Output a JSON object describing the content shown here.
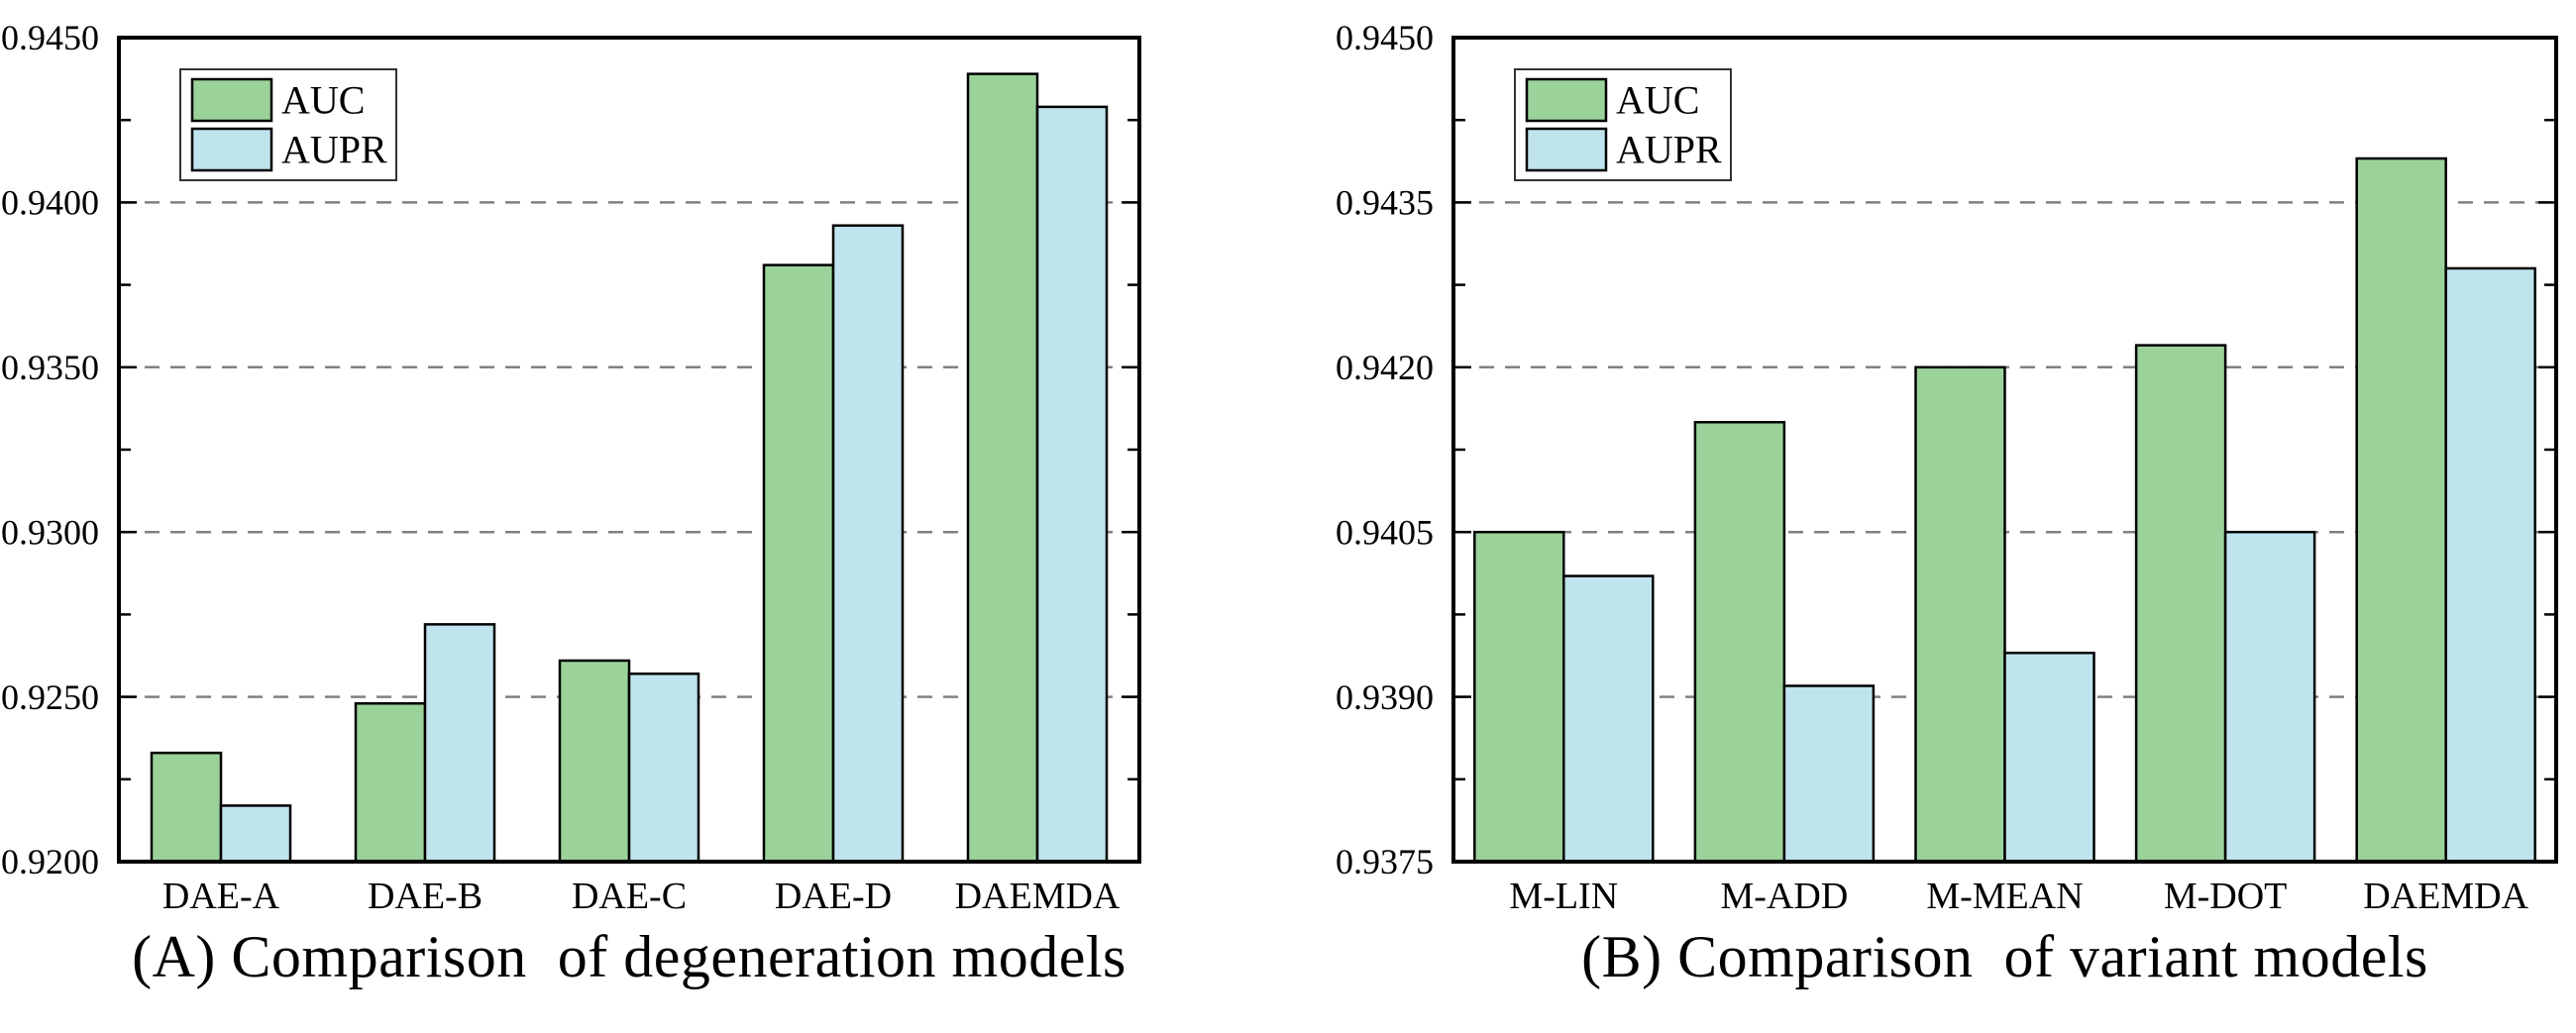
{
  "figure": {
    "background": "#ffffff"
  },
  "colors": {
    "auc": "#9bd29a",
    "aupr": "#c0e4ee",
    "bar_edge": "#000000",
    "axis": "#000000",
    "grid": "#808080",
    "text": "#000000"
  },
  "legend": {
    "position": "upper-left",
    "items": [
      {
        "label": "AUC",
        "color_key": "auc"
      },
      {
        "label": "AUPR",
        "color_key": "aupr"
      }
    ]
  },
  "chart_data": [
    {
      "id": "A",
      "type": "bar",
      "caption": "(A) Comparison  of degeneration models",
      "categories": [
        "DAE-A",
        "DAE-B",
        "DAE-C",
        "DAE-D",
        "DAEMDA"
      ],
      "series": [
        {
          "name": "AUC",
          "values": [
            0.9233,
            0.9248,
            0.9261,
            0.9381,
            0.9439
          ]
        },
        {
          "name": "AUPR",
          "values": [
            0.9217,
            0.9272,
            0.9257,
            0.9393,
            0.9429
          ]
        }
      ],
      "ylim": [
        0.92,
        0.945
      ],
      "ytick_step": 0.005,
      "yticks": [
        0.92,
        0.925,
        0.93,
        0.935,
        0.94,
        0.945
      ],
      "ytick_labels": [
        "0.9200",
        "0.9250",
        "0.9300",
        "0.9350",
        "0.9400",
        "0.9450"
      ],
      "xlabel": "",
      "ylabel": "",
      "grid": "horizontal-dashed",
      "legend_position": "upper-left"
    },
    {
      "id": "B",
      "type": "bar",
      "caption": "(B) Comparison  of variant models",
      "categories": [
        "M-LIN",
        "M-ADD",
        "M-MEAN",
        "M-DOT",
        "DAEMDA"
      ],
      "series": [
        {
          "name": "AUC",
          "values": [
            0.9405,
            0.9415,
            0.942,
            0.9422,
            0.9439
          ]
        },
        {
          "name": "AUPR",
          "values": [
            0.9401,
            0.9391,
            0.9394,
            0.9405,
            0.9429
          ]
        }
      ],
      "ylim": [
        0.9375,
        0.945
      ],
      "ytick_step": 0.0015,
      "yticks": [
        0.9375,
        0.939,
        0.9405,
        0.942,
        0.9435,
        0.945
      ],
      "ytick_labels": [
        "0.9375",
        "0.9390",
        "0.9405",
        "0.9420",
        "0.9435",
        "0.9450"
      ],
      "xlabel": "",
      "ylabel": "",
      "grid": "horizontal-dashed",
      "legend_position": "upper-left"
    }
  ]
}
